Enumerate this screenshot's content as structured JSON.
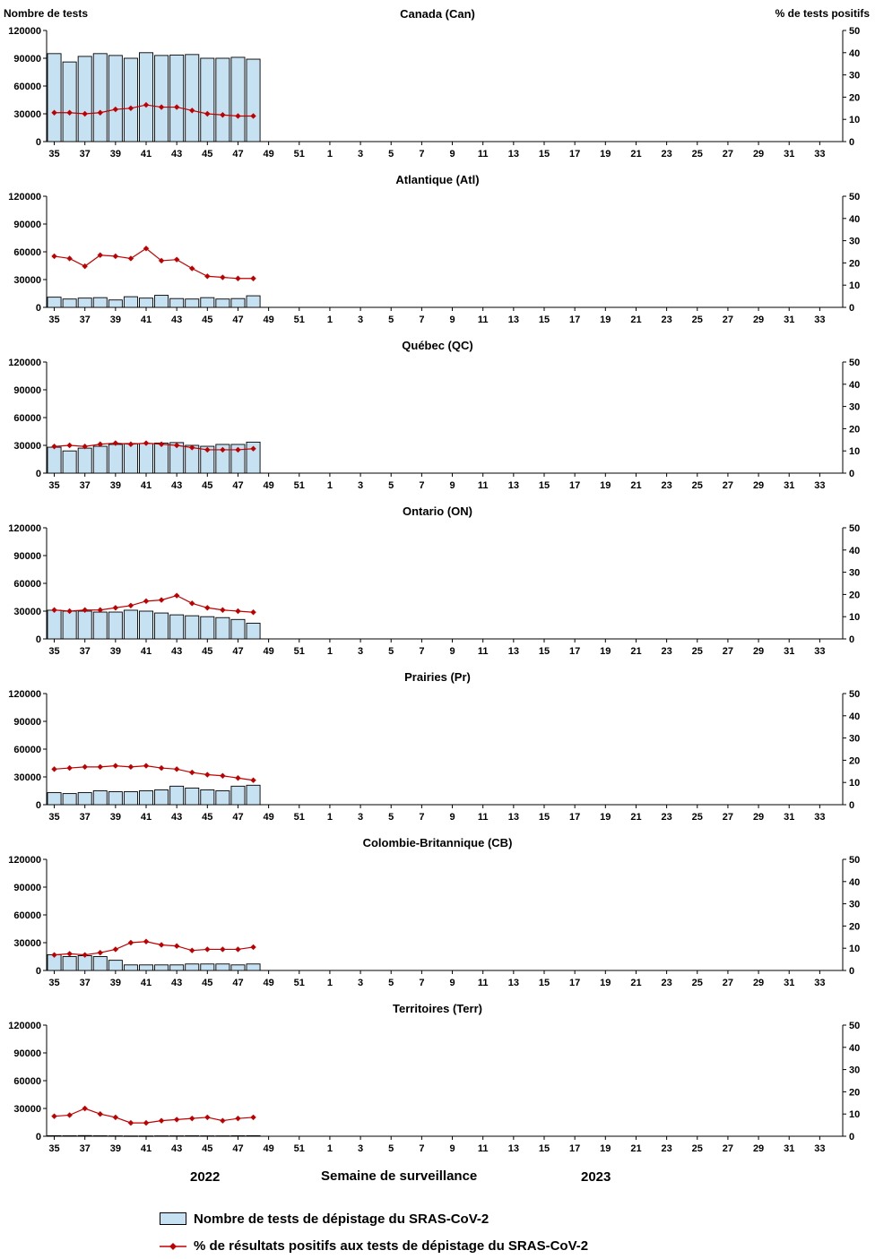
{
  "header": {
    "left_axis_title": "Nombre de tests",
    "right_axis_title": "% de tests positifs"
  },
  "footer": {
    "year_left": "2022",
    "x_axis_label": "Semaine de surveillance",
    "year_right": "2023"
  },
  "legend": {
    "tests_label": "Nombre de tests de dépistage du SRAS-CoV-2",
    "positivity_label": "% de résultats positifs aux tests de dépistage du SRAS-CoV-2"
  },
  "colors": {
    "bar_fill": "#c6e1f2",
    "bar_stroke": "#000000",
    "line": "#c00000",
    "axis": "#000000"
  },
  "axes": {
    "left_ticks": [
      0,
      30000,
      60000,
      90000,
      120000
    ],
    "left_max": 120000,
    "right_ticks": [
      0,
      10,
      20,
      30,
      40,
      50
    ],
    "right_max": 50,
    "x_tick_labels": [
      "35",
      "37",
      "39",
      "41",
      "43",
      "45",
      "47",
      "49",
      "51",
      "1",
      "3",
      "5",
      "7",
      "9",
      "11",
      "13",
      "15",
      "17",
      "19",
      "21",
      "23",
      "25",
      "27",
      "29",
      "31",
      "33"
    ],
    "weeks_total": 52,
    "data_start_week": 35
  },
  "chart_data": [
    {
      "type": "bar+line",
      "id": "can",
      "title": "Canada (Can)",
      "weeks": [
        35,
        36,
        37,
        38,
        39,
        40,
        41,
        42,
        43,
        44,
        45,
        46,
        47,
        48
      ],
      "bars_tests": [
        95000,
        86000,
        92000,
        95000,
        93000,
        90000,
        96000,
        93000,
        93500,
        94000,
        90000,
        90000,
        91000,
        89000
      ],
      "line_pct_positive": [
        13,
        13,
        12.5,
        13,
        14.5,
        15,
        16.5,
        15.5,
        15.5,
        14,
        12.5,
        12,
        11.5,
        11.5
      ]
    },
    {
      "type": "bar+line",
      "id": "atl",
      "title": "Atlantique (Atl)",
      "weeks": [
        35,
        36,
        37,
        38,
        39,
        40,
        41,
        42,
        43,
        44,
        45,
        46,
        47,
        48
      ],
      "bars_tests": [
        11000,
        9000,
        10000,
        10500,
        8000,
        11500,
        10000,
        13000,
        9500,
        9000,
        10500,
        9000,
        9500,
        12500
      ],
      "line_pct_positive": [
        23,
        22,
        18.5,
        23.5,
        23,
        22,
        26.5,
        21,
        21.5,
        17.5,
        14,
        13.5,
        13,
        13
      ]
    },
    {
      "type": "bar+line",
      "id": "qc",
      "title": "Québec (QC)",
      "weeks": [
        35,
        36,
        37,
        38,
        39,
        40,
        41,
        42,
        43,
        44,
        45,
        46,
        47,
        48
      ],
      "bars_tests": [
        28000,
        24000,
        27000,
        29000,
        31000,
        32000,
        32000,
        32500,
        33000,
        30000,
        29000,
        31000,
        31000,
        33500
      ],
      "line_pct_positive": [
        12,
        12.5,
        12,
        13,
        13.5,
        13,
        13.5,
        13,
        12.5,
        11.5,
        10.5,
        10.5,
        10.5,
        11
      ]
    },
    {
      "type": "bar+line",
      "id": "on",
      "title": "Ontario (ON)",
      "weeks": [
        35,
        36,
        37,
        38,
        39,
        40,
        41,
        42,
        43,
        44,
        45,
        46,
        47,
        48
      ],
      "bars_tests": [
        31000,
        30000,
        30000,
        29000,
        29000,
        31000,
        30000,
        28000,
        26000,
        25000,
        24000,
        23000,
        21000,
        17000
      ],
      "line_pct_positive": [
        13,
        12.5,
        13,
        13,
        14,
        15,
        17,
        17.5,
        19.5,
        16,
        14,
        13,
        12.5,
        12
      ]
    },
    {
      "type": "bar+line",
      "id": "pr",
      "title": "Prairies (Pr)",
      "weeks": [
        35,
        36,
        37,
        38,
        39,
        40,
        41,
        42,
        43,
        44,
        45,
        46,
        47,
        48
      ],
      "bars_tests": [
        13000,
        12000,
        13000,
        15000,
        14000,
        14000,
        15000,
        16000,
        20000,
        18000,
        16000,
        15000,
        20000,
        21000
      ],
      "line_pct_positive": [
        16,
        16.5,
        17,
        17,
        17.5,
        17,
        17.5,
        16.5,
        16,
        14.5,
        13.5,
        13,
        12,
        11
      ]
    },
    {
      "type": "bar+line",
      "id": "cb",
      "title": "Colombie-Britannique (CB)",
      "weeks": [
        35,
        36,
        37,
        38,
        39,
        40,
        41,
        42,
        43,
        44,
        45,
        46,
        47,
        48
      ],
      "bars_tests": [
        17000,
        15000,
        16000,
        15000,
        11000,
        6000,
        6000,
        6000,
        6000,
        7000,
        7000,
        7000,
        6000,
        7000
      ],
      "line_pct_positive": [
        7,
        7.5,
        7,
        8,
        9.5,
        12.5,
        13,
        11.5,
        11,
        9,
        9.5,
        9.5,
        9.5,
        10.5
      ]
    },
    {
      "type": "bar+line",
      "id": "terr",
      "title": "Territoires (Terr)",
      "weeks": [
        35,
        36,
        37,
        38,
        39,
        40,
        41,
        42,
        43,
        44,
        45,
        46,
        47,
        48
      ],
      "bars_tests": [
        600,
        500,
        700,
        500,
        400,
        300,
        300,
        400,
        400,
        500,
        400,
        400,
        500,
        600
      ],
      "line_pct_positive": [
        9,
        9.5,
        12.5,
        10,
        8.5,
        6,
        6,
        7,
        7.5,
        8,
        8.5,
        7,
        8,
        8.5
      ]
    }
  ]
}
